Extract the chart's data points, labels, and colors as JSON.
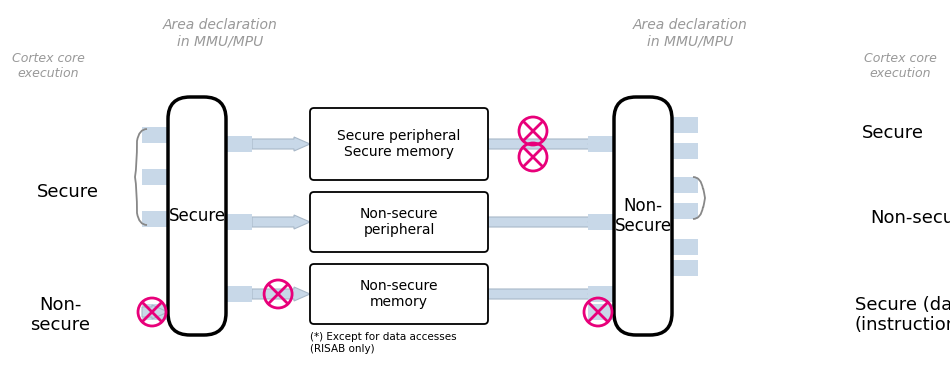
{
  "bg_color": "#ffffff",
  "gray_text_color": "#999999",
  "pink_color": "#e8007a",
  "arrow_color": "#b8cfe0",
  "tab_fill": "#c8d8e8",
  "left_header": "Area declaration\nin MMU/MPU",
  "right_header": "Area declaration\nin MMU/MPU",
  "left_core_label": "Cortex core\nexecution",
  "right_core_label": "Cortex core\nexecution",
  "left_secure_label": "Secure",
  "left_nonsecure_label": "Non-\nsecure",
  "right_secure_label": "Secure",
  "right_nonsecure_label": "Non-secure",
  "right_secure_data_label": "Secure (data)\n(instructions)",
  "left_box_label": "Secure",
  "right_box_label": "Non-\nSecure",
  "mem_box1": "Secure peripheral\nSecure memory",
  "mem_box2": "Non-secure\nperipheral",
  "mem_box3": "Non-secure\nmemory",
  "footnote": "(*) Except for data accesses\n(RISAB only)"
}
